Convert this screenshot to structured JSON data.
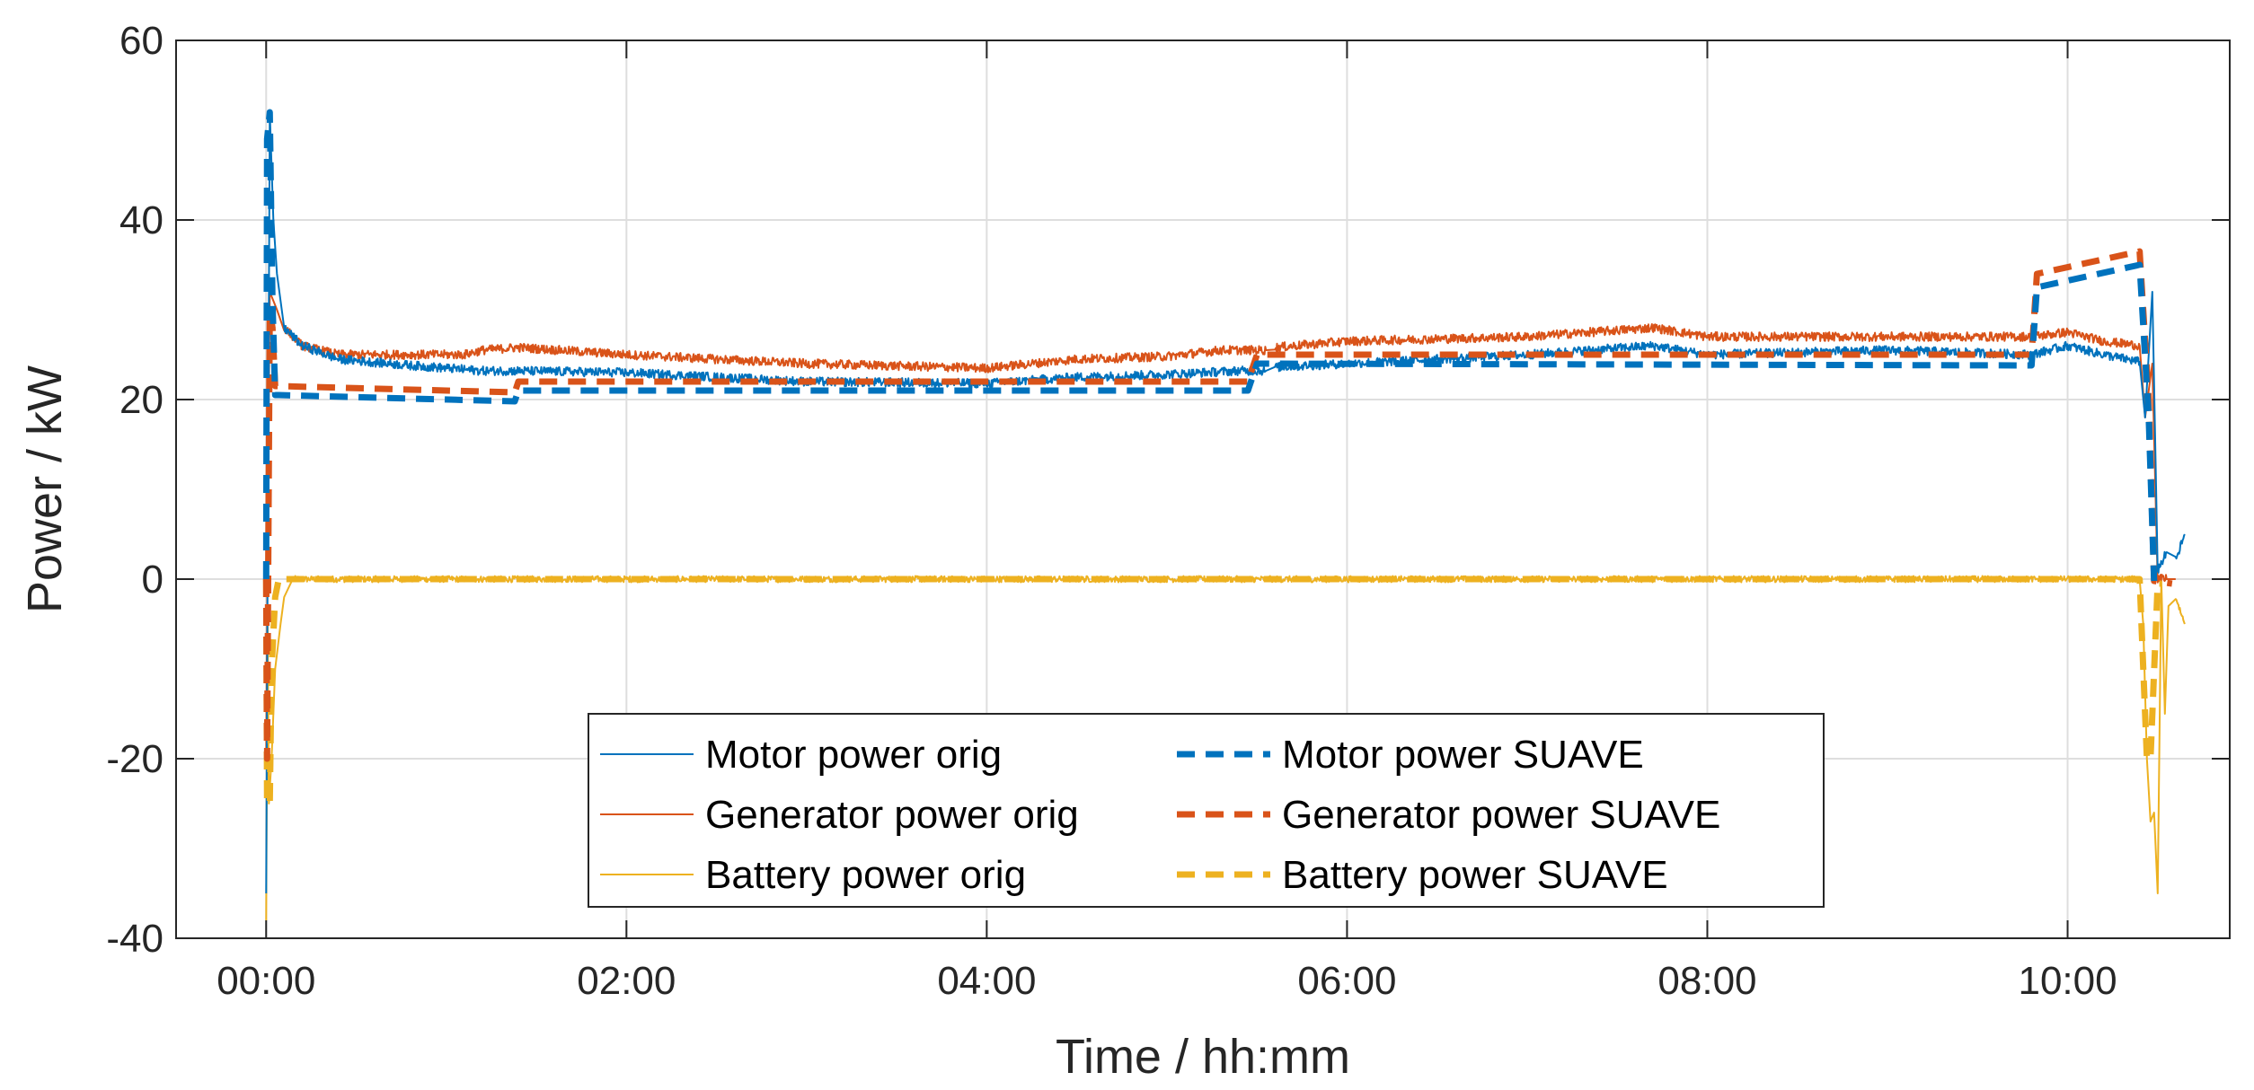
{
  "chart_data": {
    "type": "line",
    "title": "",
    "xlabel": "Time / hh:mm",
    "ylabel": "Power / kW",
    "xlim": [
      -0.5,
      10.9
    ],
    "ylim": [
      -40,
      60
    ],
    "x_ticks": [
      {
        "value": 0,
        "label": "00:00"
      },
      {
        "value": 2,
        "label": "02:00"
      },
      {
        "value": 4,
        "label": "04:00"
      },
      {
        "value": 6,
        "label": "06:00"
      },
      {
        "value": 8,
        "label": "08:00"
      },
      {
        "value": 10,
        "label": "10:00"
      }
    ],
    "y_ticks": [
      {
        "value": -40,
        "label": "-40"
      },
      {
        "value": -20,
        "label": "-20"
      },
      {
        "value": 0,
        "label": "0"
      },
      {
        "value": 20,
        "label": "20"
      },
      {
        "value": 40,
        "label": "40"
      },
      {
        "value": 60,
        "label": "60"
      }
    ],
    "grid": true,
    "legend_position": "bottom-center",
    "series": [
      {
        "name": "Motor power orig",
        "color": "#0072BD",
        "style": "solid",
        "noise": 0.5,
        "x": [
          0,
          0.01,
          0.02,
          0.04,
          0.06,
          0.1,
          0.2,
          0.4,
          0.8,
          1.2,
          1.4,
          2.0,
          3.0,
          4.0,
          4.5,
          5.0,
          5.4,
          5.55,
          5.6,
          6.0,
          7.0,
          7.7,
          8.0,
          9.0,
          9.8,
          10.0,
          10.2,
          10.4,
          10.43,
          10.47,
          10.5,
          10.55,
          10.6,
          10.65
        ],
        "y": [
          -35,
          10,
          52,
          40,
          34,
          28,
          26,
          24.5,
          23.8,
          23.2,
          23.2,
          23,
          22,
          21.8,
          22.5,
          22.8,
          23.2,
          23.2,
          23.6,
          24,
          25,
          26,
          25,
          25.5,
          25,
          26,
          25,
          24.2,
          18,
          32,
          1,
          3,
          2,
          5
        ]
      },
      {
        "name": "Generator power orig",
        "color": "#D95319",
        "style": "solid",
        "noise": 0.5,
        "x": [
          0,
          0.01,
          0.02,
          0.04,
          0.06,
          0.1,
          0.2,
          0.4,
          0.8,
          1.1,
          1.2,
          1.4,
          2.0,
          3.0,
          4.0,
          4.5,
          5.0,
          5.3,
          5.55,
          5.6,
          6.0,
          7.0,
          7.7,
          8.0,
          9.0,
          9.8,
          10.0,
          10.2,
          10.4,
          10.43,
          10.47,
          10.5,
          10.55,
          10.6
        ],
        "y": [
          -20,
          10,
          32,
          31,
          30,
          28,
          26,
          25,
          25,
          25,
          25.5,
          25.8,
          25,
          24,
          23.5,
          24.5,
          24.8,
          25.5,
          25.5,
          25.8,
          26.5,
          27,
          28,
          27,
          27,
          27,
          27.5,
          26.5,
          26,
          18,
          24,
          0,
          0,
          0
        ]
      },
      {
        "name": "Battery power orig",
        "color": "#EDB120",
        "style": "solid",
        "noise": 0.35,
        "x": [
          0,
          0.008,
          0.015,
          0.03,
          0.05,
          0.08,
          0.1,
          0.15,
          10.4,
          10.42,
          10.44,
          10.46,
          10.48,
          10.5,
          10.52,
          10.54,
          10.56,
          10.6,
          10.65
        ],
        "y": [
          -38,
          -5,
          -25,
          -20,
          -10,
          -5,
          -2,
          0,
          0,
          -5,
          -20,
          -27,
          -26,
          -35,
          0,
          -15,
          -3,
          -2,
          -5
        ]
      },
      {
        "name": "Motor power SUAVE",
        "color": "#0072BD",
        "style": "dashed",
        "noise": 0,
        "x": [
          0,
          0.005,
          0.02,
          0.035,
          0.05,
          0.07,
          1.38,
          1.4,
          5.45,
          5.5,
          9.8,
          9.83,
          10.4,
          10.45,
          10.48
        ],
        "y": [
          0,
          49,
          52,
          31,
          20.5,
          20.5,
          19.8,
          21,
          21,
          24,
          23.8,
          32.5,
          35,
          18,
          -0.2
        ],
        "stepped": true
      },
      {
        "name": "Generator power SUAVE",
        "color": "#D95319",
        "style": "dashed",
        "noise": 0,
        "x": [
          0,
          0.005,
          0.02,
          0.035,
          0.05,
          0.07,
          1.38,
          1.4,
          5.45,
          5.5,
          9.8,
          9.83,
          10.4,
          10.45,
          10.48,
          10.58
        ],
        "y": [
          0,
          -20,
          30,
          28,
          21.5,
          21.5,
          20.8,
          22,
          22,
          25,
          25,
          34,
          36.5,
          20,
          -0.2,
          -0.5
        ]
      },
      {
        "name": "Battery power SUAVE",
        "color": "#EDB120",
        "style": "dashed",
        "noise": 0,
        "x": [
          0,
          0.005,
          0.02,
          0.03,
          0.05,
          0.07,
          10.4,
          10.44,
          10.46,
          10.5,
          10.52
        ],
        "y": [
          0,
          -25,
          -25,
          -10,
          -2,
          0,
          0,
          -20,
          -20,
          -0.5,
          -0.5
        ]
      }
    ]
  }
}
